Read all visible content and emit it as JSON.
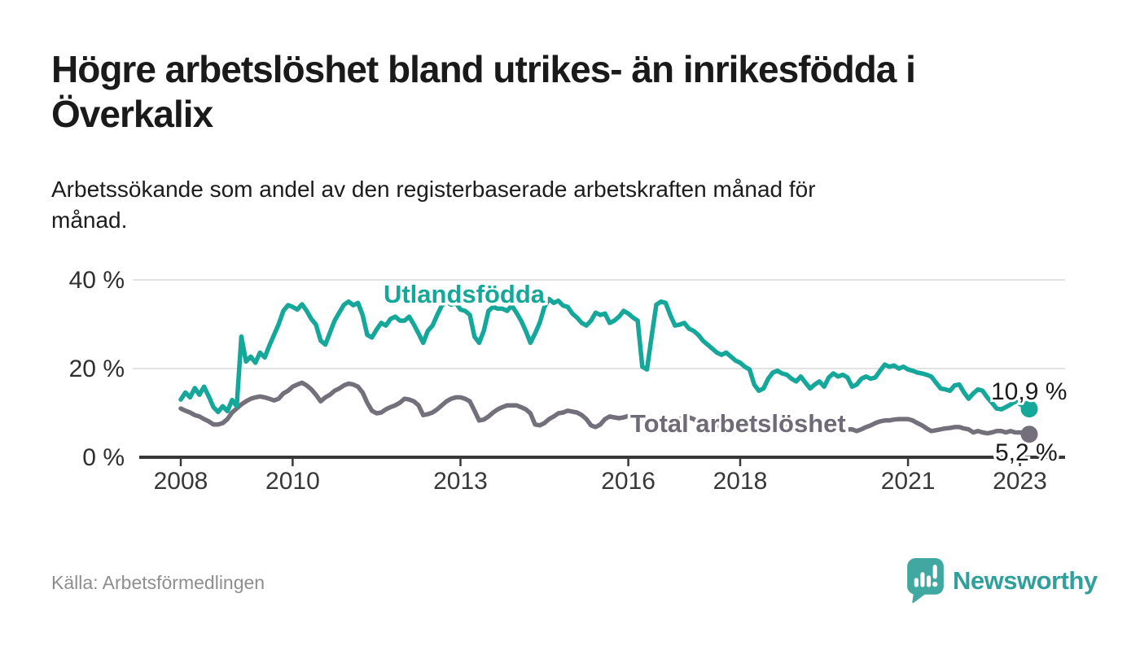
{
  "header": {
    "title_lines": [
      "Högre arbetslöshet bland utrikes- än inrikesfödda i",
      "Överkalix"
    ],
    "title": "Högre arbetslöshet bland utrikes- än inrikesfödda i Överkalix",
    "subtitle_lines": [
      "Arbetssökande som andel av den registerbaserade arbetskraften månad för",
      "månad."
    ],
    "subtitle": "Arbetssökande som andel av den registerbaserade arbetskraften månad för månad."
  },
  "footer": {
    "source": "Källa: Arbetsförmedlingen",
    "brand": "Newsworthy"
  },
  "colors": {
    "accent_teal": "#14a79a",
    "series_gray": "#74707b",
    "label_gray": "#6f6b76",
    "value_label": "#1b1b1b",
    "axis": "#383838",
    "gridline": "#d9d9d9",
    "logo_icon": "#41a8a1",
    "logo_text": "#2fa09b"
  },
  "chart_data": {
    "type": "line",
    "title": "Högre arbetslöshet bland utrikes- än inrikesfödda i Överkalix",
    "subtitle": "Arbetssökande som andel av den registerbaserade arbetskraften månad för månad.",
    "x_start": "2008-01",
    "x_end": "2023-03",
    "x_interval": "monthly",
    "x_axis": {
      "ticks": [
        2008,
        2010,
        2013,
        2016,
        2018,
        2021,
        2023
      ]
    },
    "y_axis": {
      "ticks": [
        {
          "value": 40,
          "label": "40 %"
        },
        {
          "value": 20,
          "label": "20 %"
        },
        {
          "value": 0,
          "label": "0 %"
        }
      ],
      "range": [
        0,
        43
      ],
      "grid": true
    },
    "legend_position": "inline-labels",
    "series": [
      {
        "name": "Total arbetslöshet",
        "color": "#74707b",
        "end_label": "5,2 %",
        "end_value": 5.2,
        "values": [
          11.0,
          10.5,
          10.1,
          9.5,
          9.2,
          8.6,
          8.1,
          7.4,
          7.4,
          7.7,
          8.6,
          10.1,
          11.0,
          11.9,
          12.6,
          13.2,
          13.5,
          13.7,
          13.5,
          13.2,
          12.8,
          13.2,
          14.4,
          15.0,
          15.9,
          16.4,
          16.8,
          16.2,
          15.3,
          14.1,
          12.6,
          13.5,
          14.1,
          15.0,
          15.5,
          16.2,
          16.6,
          16.4,
          15.9,
          14.6,
          12.3,
          10.5,
          9.9,
          10.1,
          10.8,
          11.3,
          11.7,
          12.3,
          13.2,
          13.0,
          12.6,
          11.7,
          9.5,
          9.7,
          10.1,
          10.8,
          11.7,
          12.6,
          13.2,
          13.5,
          13.5,
          13.2,
          12.6,
          10.5,
          8.3,
          8.5,
          9.2,
          10.1,
          10.8,
          11.3,
          11.7,
          11.7,
          11.7,
          11.3,
          10.8,
          9.9,
          7.4,
          7.2,
          7.7,
          8.6,
          9.2,
          9.9,
          10.1,
          10.5,
          10.3,
          10.1,
          9.5,
          8.6,
          7.2,
          6.8,
          7.4,
          8.6,
          9.2,
          9.0,
          8.8,
          9.0,
          9.3,
          9.5,
          9.0,
          8.3,
          7.0,
          6.5,
          6.8,
          7.2,
          7.7,
          8.1,
          8.3,
          8.6,
          8.8,
          9.0,
          8.6,
          7.9,
          6.8,
          6.3,
          6.6,
          7.0,
          7.4,
          7.7,
          7.9,
          8.1,
          8.3,
          8.1,
          7.7,
          7.0,
          6.1,
          5.8,
          6.1,
          6.5,
          6.8,
          7.0,
          7.2,
          7.2,
          7.2,
          7.0,
          6.8,
          6.5,
          6.1,
          5.9,
          6.1,
          6.3,
          6.5,
          6.3,
          6.1,
          6.3,
          6.3,
          5.9,
          6.3,
          6.8,
          7.2,
          7.7,
          8.1,
          8.3,
          8.3,
          8.5,
          8.6,
          8.6,
          8.6,
          8.3,
          7.7,
          7.2,
          6.5,
          5.9,
          6.1,
          6.3,
          6.5,
          6.6,
          6.8,
          6.8,
          6.5,
          6.3,
          5.6,
          5.9,
          5.6,
          5.4,
          5.6,
          5.9,
          5.9,
          5.6,
          5.9,
          5.6,
          5.6,
          5.4,
          5.2
        ]
      },
      {
        "name": "Utlandsfödda",
        "color": "#14a79a",
        "end_label": "10,9 %",
        "end_value": 10.9,
        "values": [
          13.0,
          14.6,
          13.5,
          15.6,
          14.1,
          15.9,
          13.7,
          11.3,
          10.2,
          11.5,
          10.4,
          12.9,
          11.5,
          27.2,
          21.6,
          22.7,
          21.3,
          23.6,
          22.5,
          25.2,
          27.6,
          30.0,
          33.0,
          34.3,
          33.9,
          33.3,
          34.5,
          33.0,
          31.2,
          29.9,
          26.3,
          25.4,
          28.1,
          30.8,
          32.6,
          34.4,
          35.1,
          34.3,
          34.8,
          32.1,
          27.6,
          27.0,
          28.8,
          30.3,
          29.7,
          31.2,
          31.7,
          30.8,
          30.8,
          31.7,
          29.9,
          27.9,
          25.8,
          28.5,
          29.7,
          32.1,
          34.2,
          35.1,
          34.4,
          34.8,
          33.3,
          33.0,
          32.1,
          27.2,
          25.8,
          28.5,
          33.0,
          33.9,
          33.5,
          33.5,
          33.0,
          34.2,
          32.6,
          30.8,
          28.5,
          25.8,
          27.9,
          30.3,
          33.9,
          35.7,
          34.8,
          35.3,
          34.2,
          33.9,
          32.4,
          31.5,
          30.3,
          29.7,
          30.8,
          32.6,
          32.1,
          32.4,
          30.3,
          30.8,
          31.7,
          33.0,
          32.4,
          31.5,
          30.8,
          20.4,
          19.8,
          27.2,
          34.4,
          35.1,
          34.8,
          32.1,
          29.7,
          29.9,
          30.3,
          29.0,
          28.5,
          27.6,
          26.3,
          25.4,
          24.5,
          23.6,
          23.1,
          23.6,
          22.7,
          21.8,
          21.3,
          20.4,
          19.8,
          16.4,
          15.0,
          15.5,
          17.7,
          19.1,
          19.5,
          18.9,
          18.6,
          17.7,
          17.1,
          18.2,
          16.8,
          15.5,
          16.4,
          17.1,
          15.9,
          18.0,
          18.9,
          18.2,
          18.6,
          18.0,
          15.9,
          16.4,
          17.7,
          18.2,
          17.7,
          18.0,
          19.5,
          20.9,
          20.4,
          20.7,
          20.0,
          20.4,
          19.8,
          19.5,
          19.1,
          18.9,
          18.6,
          18.2,
          16.8,
          15.5,
          15.3,
          15.0,
          16.2,
          16.4,
          14.6,
          13.2,
          14.4,
          15.3,
          15.0,
          13.5,
          12.3,
          11.0,
          10.8,
          11.3,
          11.9,
          12.6,
          12.0,
          11.3,
          10.9
        ]
      }
    ]
  }
}
